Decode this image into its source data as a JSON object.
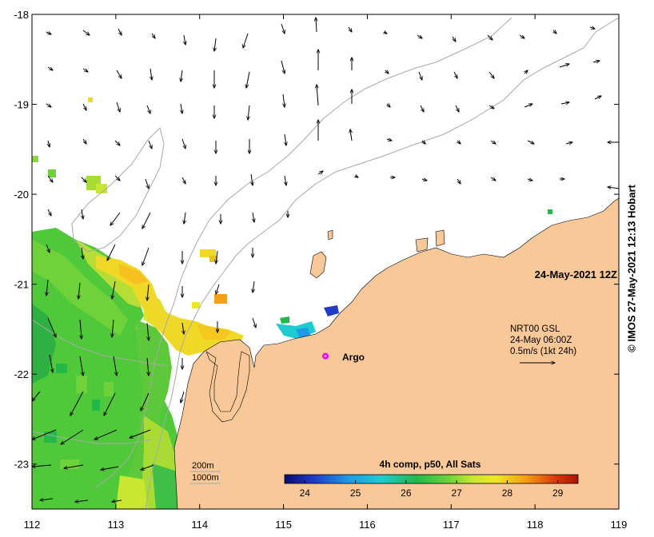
{
  "map": {
    "x_ticks": [
      {
        "value": 112,
        "label": "112"
      },
      {
        "value": 113,
        "label": "113"
      },
      {
        "value": 114,
        "label": "114"
      },
      {
        "value": 115,
        "label": "115"
      },
      {
        "value": 116,
        "label": "116"
      },
      {
        "value": 117,
        "label": "117"
      },
      {
        "value": 118,
        "label": "118"
      },
      {
        "value": 119,
        "label": "119"
      }
    ],
    "y_ticks": [
      {
        "value": -18,
        "label": "-18"
      },
      {
        "value": -19,
        "label": "-19"
      },
      {
        "value": -20,
        "label": "-20"
      },
      {
        "value": -21,
        "label": "-21"
      },
      {
        "value": -22,
        "label": "-22"
      },
      {
        "value": -23,
        "label": "-23"
      }
    ],
    "lon_range": [
      112,
      119
    ],
    "lat_range": [
      -23.5,
      -18
    ],
    "timestamp": "24-May-2021 12Z",
    "argo_label": "Argo",
    "argo_position": {
      "lon": 115.5,
      "lat": -21.8
    },
    "legend": {
      "line1": "NRT00 GSL",
      "line2": "24-May 06:00Z",
      "line3": "0.5m/s (1kt 24h)"
    },
    "isobaths": {
      "label_200": "200m",
      "label_1000": "1000m"
    },
    "colorbar": {
      "title": "4h comp, p50, All Sats",
      "ticks": [
        "24",
        "25",
        "26",
        "27",
        "28",
        "29"
      ],
      "tick_values": [
        24,
        25,
        26,
        27,
        28,
        29
      ],
      "range": [
        23.6,
        29.4
      ]
    },
    "credit": "© IMOS 27-May-2021 12:13 Hobart",
    "colors": {
      "land": "#f9c898",
      "ocean_empty": "#ffffff",
      "isobath": "#a8a8a8",
      "argo_marker": "#ff00ff"
    }
  }
}
